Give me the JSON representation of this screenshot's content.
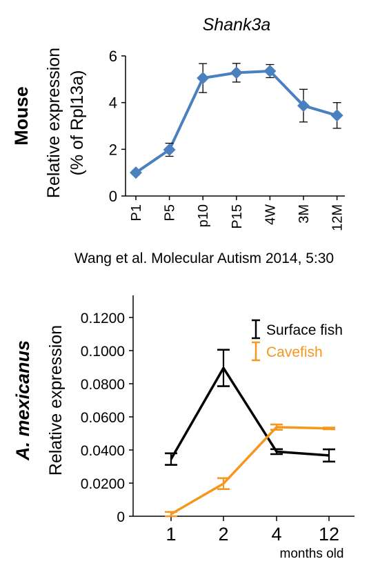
{
  "panels": {
    "mouse": {
      "side_label": "Mouse"
    },
    "fish": {
      "side_label": "A. mexicanus"
    }
  },
  "citation": "Wang et al. Molecular Autism 2014, 5:30",
  "chart_data": [
    {
      "type": "line",
      "title": "Shank3a",
      "ylabel": "Relative expression",
      "ylabel2": "(% of Rpl13a)",
      "ylim": [
        0,
        6
      ],
      "yticks": [
        "0",
        "2",
        "4",
        "6"
      ],
      "ytick_values": [
        0,
        2,
        4,
        6
      ],
      "categories": [
        "P1",
        "P5",
        "p10",
        "P15",
        "4W",
        "3M",
        "12M"
      ],
      "color": "#4a7fc0",
      "series": [
        {
          "values": [
            1.0,
            1.98,
            5.05,
            5.28,
            5.35,
            3.87,
            3.45
          ],
          "errors": [
            0.08,
            0.28,
            0.62,
            0.4,
            0.28,
            0.7,
            0.55
          ]
        }
      ]
    },
    {
      "type": "line",
      "ylabel": "Relative expression",
      "xlabel": "months old",
      "ylim": [
        0,
        0.12
      ],
      "yticks": [
        "0",
        "0.0200",
        "0.0400",
        "0.0600",
        "0.0800",
        "0.1000",
        "0.1200"
      ],
      "ytick_values": [
        0,
        0.02,
        0.04,
        0.06,
        0.08,
        0.1,
        0.12
      ],
      "categories": [
        "1",
        "2",
        "4",
        "12"
      ],
      "legend_position": "top-right",
      "series": [
        {
          "name": "Surface fish",
          "color": "#000000",
          "values": [
            0.0345,
            0.0895,
            0.039,
            0.0367
          ],
          "errors": [
            0.0035,
            0.011,
            0.0015,
            0.0037
          ]
        },
        {
          "name": "Cavefish",
          "color": "#f5961e",
          "values": [
            0.0013,
            0.0197,
            0.0538,
            0.053
          ],
          "errors": [
            0.0013,
            0.0033,
            0.0016,
            0.0005
          ]
        }
      ]
    }
  ]
}
